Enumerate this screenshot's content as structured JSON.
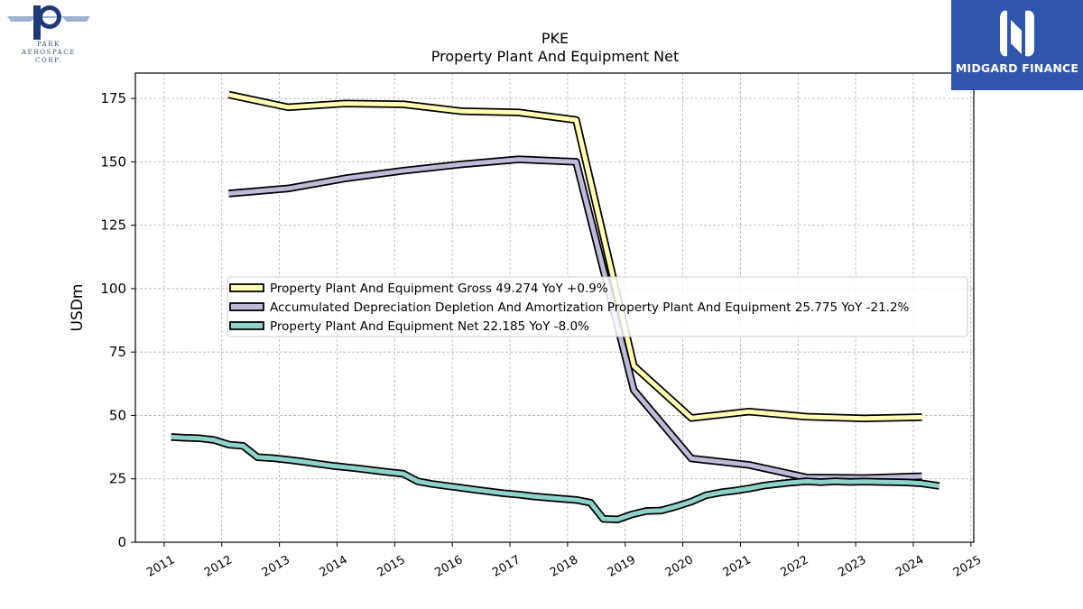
{
  "logos": {
    "left": {
      "lines": [
        "PARK",
        "AEROSPACE",
        "CORP."
      ]
    },
    "right": {
      "text": "MIDGARD FINANCE"
    }
  },
  "chart_data": {
    "type": "line",
    "title": "PKE",
    "subtitle": "Property Plant And Equipment Net",
    "ylabel": "USDm",
    "xlabel": "",
    "xlim": [
      2010.5,
      2025.05
    ],
    "ylim": [
      0,
      185
    ],
    "yticks": [
      0,
      25,
      50,
      75,
      100,
      125,
      150,
      175
    ],
    "xticks": [
      2011,
      2012,
      2013,
      2014,
      2015,
      2016,
      2017,
      2018,
      2019,
      2020,
      2021,
      2022,
      2023,
      2024,
      2025
    ],
    "grid": true,
    "legend_position": "center",
    "series": [
      {
        "name": "Property Plant And Equipment Gross",
        "legend": "Property Plant And Equipment Gross  49.274 YoY +0.9%",
        "color": "#ffffb3",
        "x": [
          2012.12,
          2013.15,
          2014.15,
          2015.15,
          2016.15,
          2017.15,
          2018.15,
          2019.15,
          2020.15,
          2021.15,
          2022.15,
          2023.15,
          2024.15
        ],
        "y": [
          176.5,
          171.5,
          173,
          172.7,
          170,
          169.5,
          166.5,
          69.5,
          49,
          51.5,
          49.5,
          48.8,
          49.3
        ]
      },
      {
        "name": "Accumulated Depreciation Depletion And Amortization Property Plant And Equipment",
        "legend": "Accumulated Depreciation Depletion And Amortization Property Plant And Equipment  25.775 YoY -21.2%",
        "color": "#bebada",
        "x": [
          2012.12,
          2013.15,
          2014.15,
          2015.15,
          2016.15,
          2017.15,
          2018.15,
          2019.15,
          2020.15,
          2021.15,
          2022.15,
          2023.15,
          2024.15
        ],
        "y": [
          137.5,
          139.5,
          143.5,
          146.5,
          149,
          151,
          150,
          60,
          33,
          30.5,
          25.5,
          25.3,
          26
        ]
      },
      {
        "name": "Property Plant And Equipment Net",
        "legend": "Property Plant And Equipment Net  22.185 YoY -8.0%",
        "color": "#8dd3c7",
        "x": [
          2011.12,
          2011.37,
          2011.62,
          2011.87,
          2012.12,
          2012.37,
          2012.62,
          2012.87,
          2013.15,
          2013.4,
          2013.65,
          2013.9,
          2014.15,
          2014.4,
          2014.65,
          2014.9,
          2015.15,
          2015.4,
          2015.65,
          2015.9,
          2016.15,
          2016.4,
          2016.65,
          2016.9,
          2017.15,
          2017.4,
          2017.65,
          2017.9,
          2018.15,
          2018.4,
          2018.62,
          2018.87,
          2019.12,
          2019.37,
          2019.62,
          2019.87,
          2020.15,
          2020.4,
          2020.65,
          2020.9,
          2021.15,
          2021.4,
          2021.65,
          2021.9,
          2022.15,
          2022.4,
          2022.65,
          2022.9,
          2023.15,
          2023.4,
          2023.65,
          2023.9,
          2024.15,
          2024.45
        ],
        "y": [
          41.5,
          41.2,
          41,
          40.3,
          38.5,
          38,
          33.5,
          33.2,
          32.5,
          31.8,
          31,
          30.2,
          29.6,
          29,
          28.3,
          27.6,
          27,
          24,
          23,
          22.2,
          21.5,
          20.7,
          20,
          19.3,
          18.8,
          18.1,
          17.6,
          17.1,
          16.7,
          15.6,
          9.2,
          9,
          11,
          12.3,
          12.5,
          14,
          16,
          18.5,
          19.6,
          20.3,
          21.2,
          22.3,
          23,
          23.6,
          24,
          23.7,
          24,
          23.8,
          23.9,
          23.8,
          23.7,
          23.6,
          23.2,
          22.2
        ]
      }
    ]
  }
}
